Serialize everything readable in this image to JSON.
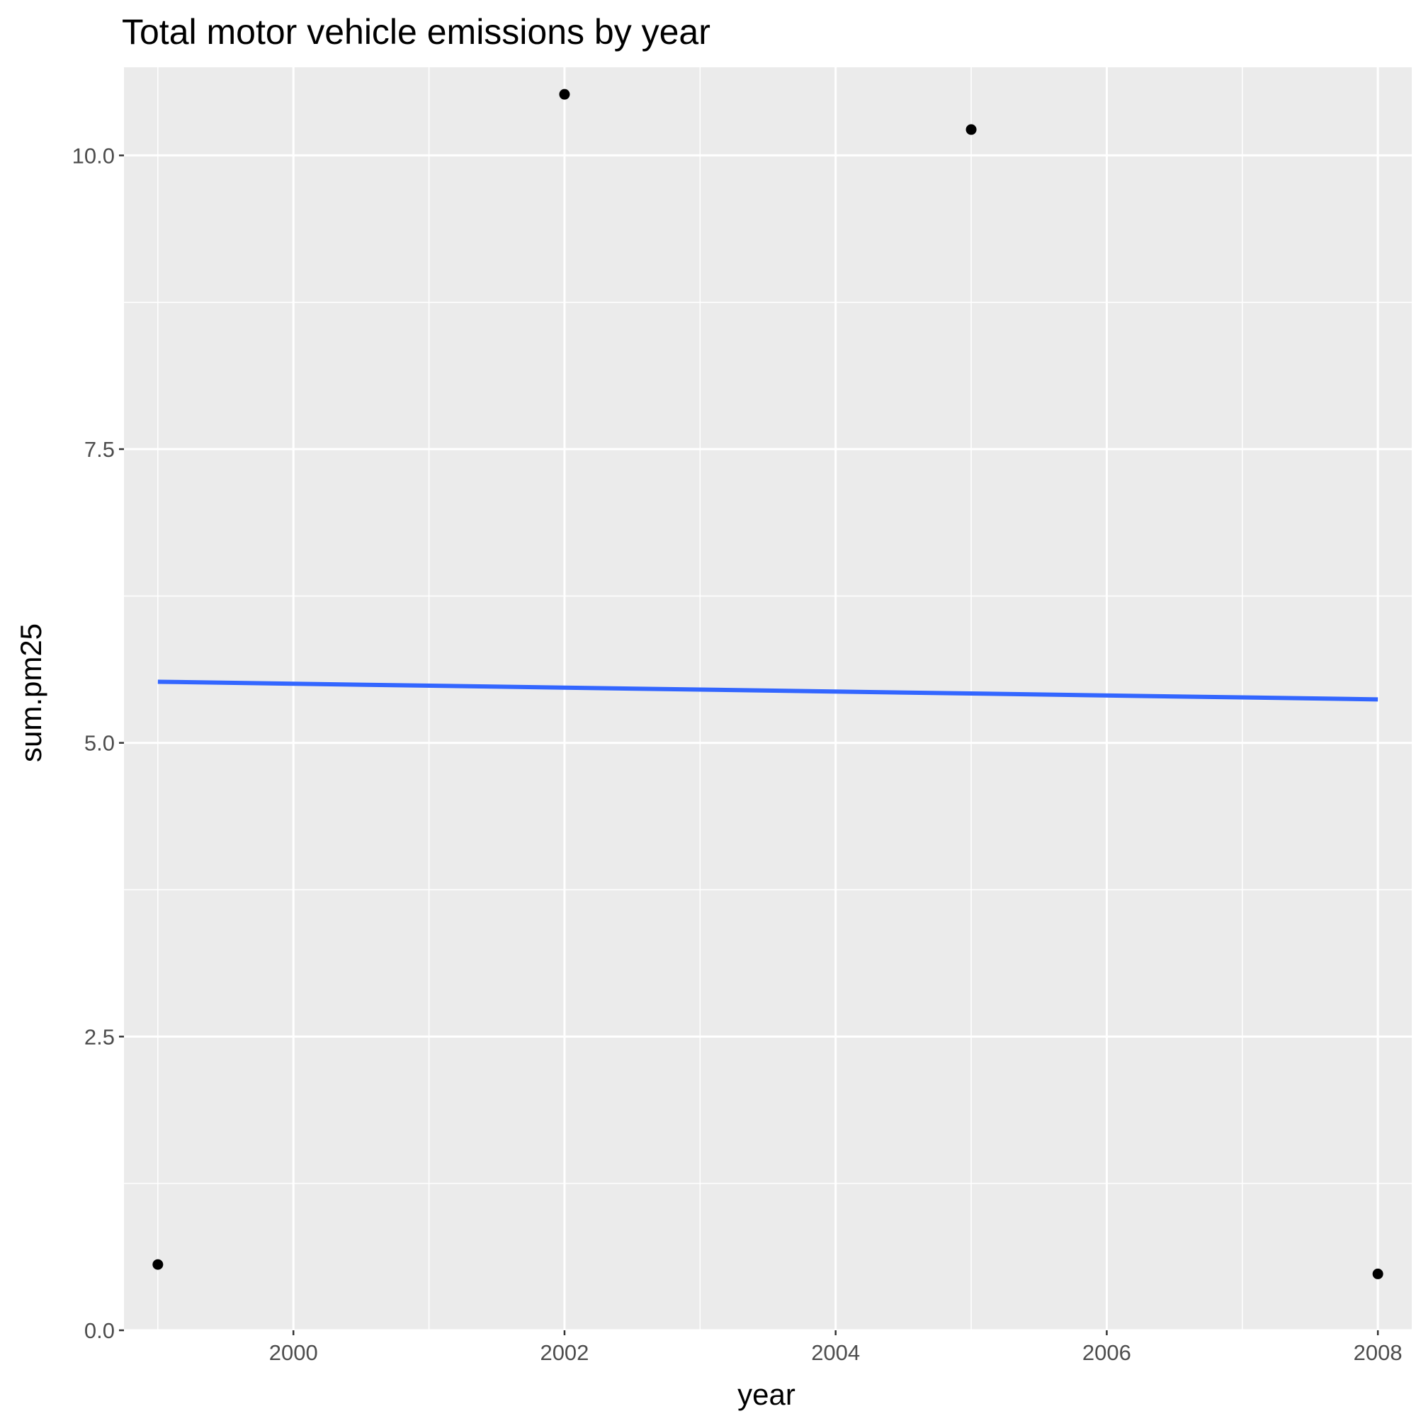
{
  "chart_data": {
    "type": "scatter",
    "title": "Total motor vehicle emissions by year",
    "xlabel": "year",
    "ylabel": "sum.pm25",
    "xlim": [
      1998.75,
      2008.25
    ],
    "ylim": [
      0,
      10.75
    ],
    "x_ticks": [
      2000,
      2002,
      2004,
      2006,
      2008
    ],
    "x_tick_labels": [
      "2000",
      "2002",
      "2004",
      "2006",
      "2008"
    ],
    "x_minor_ticks": [
      1999,
      2001,
      2003,
      2005,
      2007
    ],
    "y_ticks": [
      0,
      2.5,
      5,
      7.5,
      10
    ],
    "y_tick_labels": [
      "0.0",
      "2.5",
      "5.0",
      "7.5",
      "10.0"
    ],
    "y_minor_ticks": [
      1.25,
      3.75,
      6.25,
      8.75
    ],
    "grid": true,
    "points": {
      "x": [
        1999,
        2002,
        2005,
        2008
      ],
      "y": [
        0.56,
        10.52,
        10.22,
        0.48
      ]
    },
    "trend_line": {
      "x": [
        1999,
        2008
      ],
      "y": [
        5.52,
        5.37
      ]
    },
    "colors": {
      "panel_background": "#ebebeb",
      "grid": "#ffffff",
      "point": "#000000",
      "trend_line": "#3366ff",
      "tick": "#333333"
    }
  }
}
